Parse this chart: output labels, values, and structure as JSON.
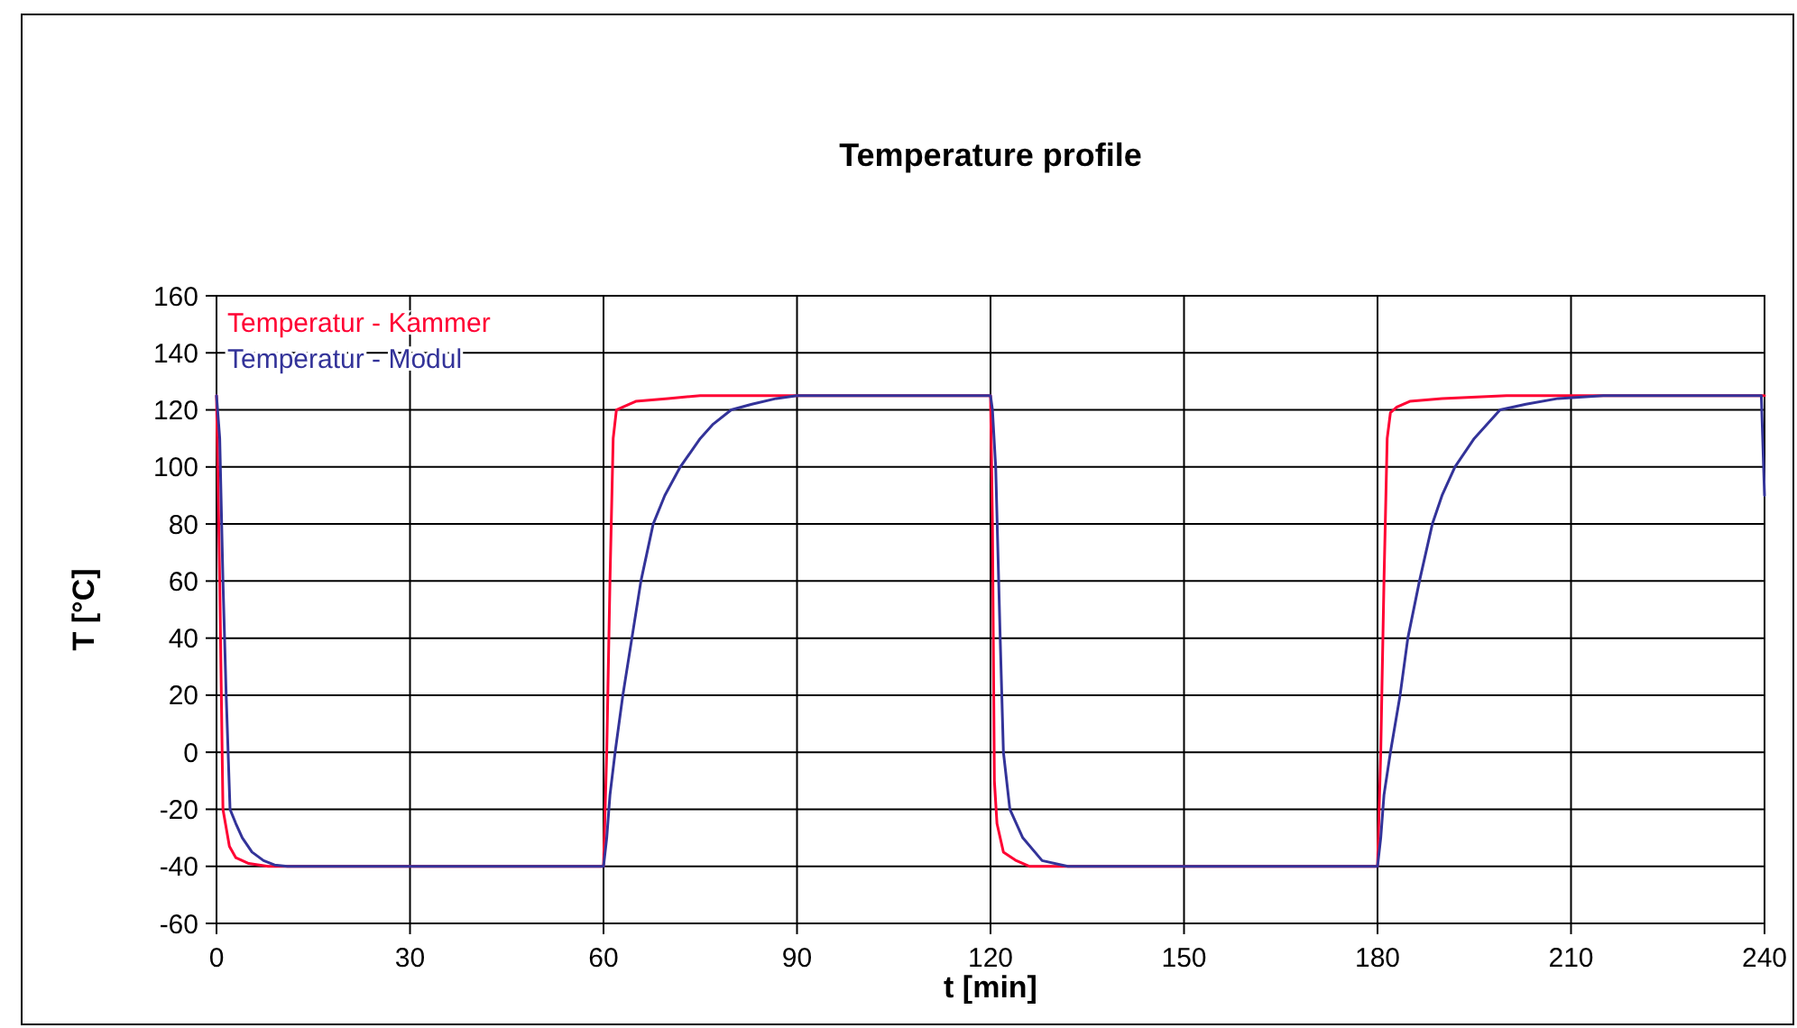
{
  "chart_data": {
    "type": "line",
    "title": "Temperature profile",
    "xlabel": "t [min]",
    "ylabel": "T [°C]",
    "xlim": [
      0,
      240
    ],
    "xticks": [
      0,
      30,
      60,
      90,
      120,
      150,
      180,
      210,
      240
    ],
    "ylim": [
      -60,
      160
    ],
    "yticks": [
      -60,
      -40,
      -20,
      0,
      20,
      40,
      60,
      80,
      100,
      120,
      140,
      160
    ],
    "grid": true,
    "legend": "top left",
    "marker": "none",
    "line_style": "solid",
    "series": [
      {
        "name": "Temperatur - Kammer",
        "color": "#ff0033",
        "x": [
          0,
          0.5,
          1,
          2,
          3,
          5,
          8,
          60,
          60.5,
          61,
          61.5,
          62,
          63,
          65,
          70,
          75,
          90,
          120,
          120.3,
          120.6,
          121,
          122,
          124,
          126,
          180,
          180.5,
          181,
          181.5,
          182,
          183,
          185,
          190,
          200,
          240
        ],
        "values": [
          125,
          60,
          -20,
          -33,
          -37,
          -39,
          -40,
          -40,
          0,
          60,
          110,
          120,
          121,
          123,
          124,
          125,
          125,
          125,
          80,
          -10,
          -25,
          -35,
          -38,
          -40,
          -40,
          0,
          60,
          110,
          119,
          121,
          123,
          124,
          125,
          125
        ]
      },
      {
        "name": "Temperatur - Modul",
        "color": "#333399",
        "x": [
          0,
          0.5,
          1,
          1.5,
          2.1,
          3,
          4,
          5.5,
          7.3,
          9,
          11,
          60,
          60.5,
          61,
          61.8,
          63,
          64.4,
          65.8,
          67.7,
          69.5,
          71.9,
          75,
          77,
          79.8,
          83,
          86.8,
          90,
          120,
          120.3,
          120.8,
          121.5,
          122,
          123,
          125,
          128,
          132,
          180,
          180.5,
          181,
          182,
          183.5,
          184.7,
          186.5,
          188.5,
          190,
          192,
          195,
          199,
          203,
          208,
          215,
          239.5,
          240
        ],
        "values": [
          125,
          110,
          60,
          20,
          -20,
          -25,
          -30,
          -35,
          -38,
          -39.5,
          -40,
          -40,
          -30,
          -15,
          0,
          20,
          40,
          60,
          80,
          90,
          100,
          110,
          115,
          120,
          122,
          124,
          125,
          125,
          120,
          100,
          40,
          0,
          -20,
          -30,
          -38,
          -40,
          -40,
          -30,
          -15,
          0,
          20,
          40,
          60,
          80,
          90,
          100,
          110,
          120,
          122,
          124,
          125,
          125,
          90
        ]
      }
    ]
  }
}
